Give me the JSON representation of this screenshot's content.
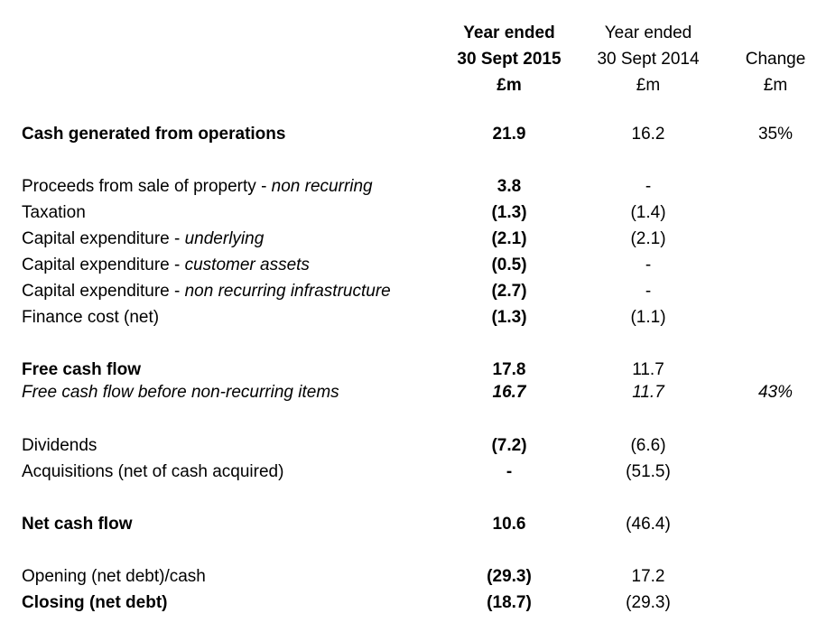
{
  "header": {
    "col_2015": [
      "Year ended",
      "30 Sept 2015",
      "£m"
    ],
    "col_2014": [
      "Year ended",
      "30 Sept 2014",
      "£m"
    ],
    "col_change": [
      "Change",
      "£m"
    ]
  },
  "rows": [
    {
      "label": "Cash generated from operations",
      "qualifier": "",
      "v2015": "21.9",
      "v2014": "16.2",
      "change": "35%"
    },
    {
      "label": "Proceeds from sale of property - ",
      "qualifier": "non recurring",
      "v2015": "3.8",
      "v2014": "-",
      "change": ""
    },
    {
      "label": "Taxation",
      "qualifier": "",
      "v2015": "(1.3)",
      "v2014": "(1.4)",
      "change": ""
    },
    {
      "label": "Capital expenditure - ",
      "qualifier": "underlying",
      "v2015": "(2.1)",
      "v2014": "(2.1)",
      "change": ""
    },
    {
      "label": "Capital expenditure - ",
      "qualifier": "customer assets",
      "v2015": "(0.5)",
      "v2014": "-",
      "change": ""
    },
    {
      "label": "Capital expenditure - ",
      "qualifier": "non recurring infrastructure",
      "v2015": "(2.7)",
      "v2014": "-",
      "change": ""
    },
    {
      "label": "Finance cost (net)",
      "qualifier": "",
      "v2015": "(1.3)",
      "v2014": "(1.1)",
      "change": ""
    },
    {
      "label": "Free cash flow",
      "qualifier": "",
      "v2015": "17.8",
      "v2014": "11.7",
      "change": ""
    },
    {
      "label": "Free cash flow before non-recurring items",
      "qualifier": "",
      "v2015": "16.7",
      "v2014": "11.7",
      "change": "43%"
    },
    {
      "label": "Dividends",
      "qualifier": "",
      "v2015": "(7.2)",
      "v2014": "(6.6)",
      "change": ""
    },
    {
      "label": "Acquisitions (net of cash acquired)",
      "qualifier": "",
      "v2015": "-",
      "v2014": "(51.5)",
      "change": ""
    },
    {
      "label": "Net cash flow",
      "qualifier": "",
      "v2015": "10.6",
      "v2014": "(46.4)",
      "change": ""
    },
    {
      "label": "Opening (net debt)/cash",
      "qualifier": "",
      "v2015": "(29.3)",
      "v2014": "17.2",
      "change": ""
    },
    {
      "label": "Closing (net debt)",
      "qualifier": "",
      "v2015": "(18.7)",
      "v2014": "(29.3)",
      "change": ""
    }
  ]
}
